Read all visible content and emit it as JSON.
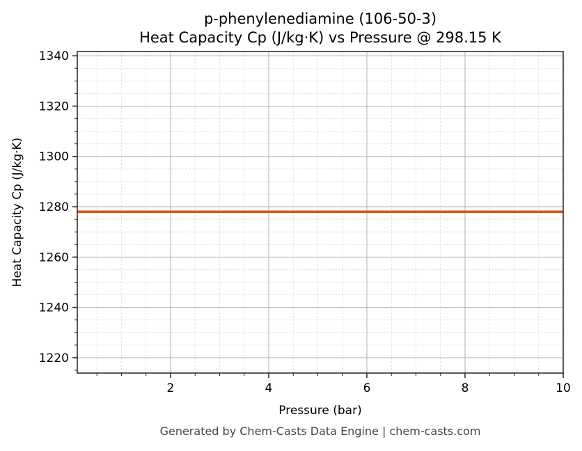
{
  "chart_data": {
    "type": "line",
    "title": "p-phenylenediamine (106-50-3)",
    "subtitle": "Heat Capacity Cp (J/kg·K) vs Pressure @ 298.15 K",
    "xlabel": "Pressure (bar)",
    "ylabel": "Heat Capacity Cp (J/kg·K)",
    "xlim": [
      0.1,
      10
    ],
    "ylim": [
      1213.9,
      1341.7
    ],
    "xticks": [
      2,
      4,
      6,
      8,
      10
    ],
    "yticks": [
      1220,
      1240,
      1260,
      1280,
      1300,
      1320,
      1340
    ],
    "x_minor_step": 0.5,
    "y_minor_step": 5,
    "grid": true,
    "series": [
      {
        "x": [
          0.1,
          10
        ],
        "y": [
          1278,
          1278
        ],
        "color": "#d9531e"
      }
    ],
    "footer": "Generated by Chem-Casts Data Engine | chem-casts.com"
  }
}
